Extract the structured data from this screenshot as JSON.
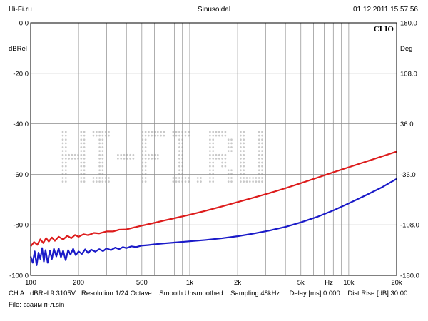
{
  "header": {
    "left": "Hi-Fi.ru",
    "center": "Sinusoidal",
    "right": "01.12.2011 15.57.56"
  },
  "brand_label": "CLIO",
  "watermark": "HI-FI.RU",
  "footer": {
    "line1": [
      "CH A",
      "dBRel 9.3105V",
      "Resolution 1/24 Octave",
      "Smooth Unsmoothed",
      "Sampling 48kHz",
      "Delay [ms] 0.000",
      "Dist Rise [dB] 30.00"
    ],
    "line2": "File: взаим п-л.sin"
  },
  "colors": {
    "red_series": "#dd1c1c",
    "blue_series": "#1a1ac8",
    "grid": "#8c8c8c",
    "watermark": "#c9c9c9"
  },
  "chart_data": {
    "type": "line",
    "x_scale": "log",
    "xlim": [
      100,
      20000
    ],
    "ylim": [
      -100,
      0
    ],
    "y2lim": [
      -180,
      180
    ],
    "ylabel": "dBRel",
    "y2label": "Deg",
    "x_tick_labels": [
      {
        "x": 100,
        "label": "100"
      },
      {
        "x": 200,
        "label": "200"
      },
      {
        "x": 500,
        "label": "500"
      },
      {
        "x": 1000,
        "label": "1k"
      },
      {
        "x": 2000,
        "label": "2k"
      },
      {
        "x": 5000,
        "label": "5k"
      },
      {
        "x": 7500,
        "label": "Hz"
      },
      {
        "x": 10000,
        "label": "10k"
      },
      {
        "x": 20000,
        "label": "20k"
      }
    ],
    "y_ticks": [
      {
        "v": 0,
        "label": "0.0"
      },
      {
        "v": -20,
        "label": "-20.0"
      },
      {
        "v": -40,
        "label": "-40.0"
      },
      {
        "v": -60,
        "label": "-60.0"
      },
      {
        "v": -80,
        "label": "-80.0"
      },
      {
        "v": -100,
        "label": "-100.0"
      }
    ],
    "y2_ticks": [
      {
        "v": 180,
        "label": "180.0"
      },
      {
        "v": 108,
        "label": "108.0"
      },
      {
        "v": 36,
        "label": "36.0"
      },
      {
        "v": -36,
        "label": "-36.0"
      },
      {
        "v": -108,
        "label": "-108.0"
      },
      {
        "v": -180,
        "label": "-180.0"
      }
    ],
    "grid": true,
    "series": [
      {
        "color": "#dd1c1c",
        "points": [
          [
            100,
            -88.5
          ],
          [
            105,
            -86.8
          ],
          [
            110,
            -87.9
          ],
          [
            115,
            -85.7
          ],
          [
            120,
            -87.2
          ],
          [
            125,
            -85.2
          ],
          [
            130,
            -86.6
          ],
          [
            136,
            -85.0
          ],
          [
            142,
            -86.3
          ],
          [
            150,
            -84.7
          ],
          [
            160,
            -85.8
          ],
          [
            170,
            -84.3
          ],
          [
            180,
            -85.3
          ],
          [
            190,
            -84.0
          ],
          [
            200,
            -84.7
          ],
          [
            215,
            -83.7
          ],
          [
            230,
            -84.1
          ],
          [
            250,
            -83.2
          ],
          [
            270,
            -83.4
          ],
          [
            300,
            -82.6
          ],
          [
            330,
            -82.6
          ],
          [
            360,
            -81.9
          ],
          [
            400,
            -81.8
          ],
          [
            450,
            -81.0
          ],
          [
            500,
            -80.3
          ],
          [
            600,
            -79.2
          ],
          [
            700,
            -78.2
          ],
          [
            800,
            -77.4
          ],
          [
            1000,
            -76.0
          ],
          [
            1250,
            -74.5
          ],
          [
            1600,
            -72.7
          ],
          [
            2000,
            -71.0
          ],
          [
            2500,
            -69.3
          ],
          [
            3150,
            -67.5
          ],
          [
            4000,
            -65.5
          ],
          [
            5000,
            -63.5
          ],
          [
            6300,
            -61.4
          ],
          [
            8000,
            -59.2
          ],
          [
            10000,
            -57.2
          ],
          [
            12500,
            -55.2
          ],
          [
            16000,
            -53.0
          ],
          [
            20000,
            -51.0
          ]
        ]
      },
      {
        "color": "#1a1ac8",
        "points": [
          [
            100,
            -92.5
          ],
          [
            103,
            -95.0
          ],
          [
            106,
            -90.5
          ],
          [
            109,
            -96.0
          ],
          [
            112,
            -91.0
          ],
          [
            115,
            -93.5
          ],
          [
            118,
            -89.2
          ],
          [
            121,
            -94.5
          ],
          [
            124,
            -90.0
          ],
          [
            128,
            -95.0
          ],
          [
            132,
            -90.2
          ],
          [
            136,
            -93.5
          ],
          [
            140,
            -89.5
          ],
          [
            145,
            -92.5
          ],
          [
            150,
            -89.3
          ],
          [
            155,
            -92.8
          ],
          [
            160,
            -90.2
          ],
          [
            166,
            -94.0
          ],
          [
            172,
            -90.0
          ],
          [
            178,
            -91.8
          ],
          [
            185,
            -89.5
          ],
          [
            192,
            -92.0
          ],
          [
            200,
            -90.5
          ],
          [
            210,
            -91.5
          ],
          [
            220,
            -89.7
          ],
          [
            230,
            -91.2
          ],
          [
            240,
            -89.8
          ],
          [
            255,
            -90.6
          ],
          [
            270,
            -89.6
          ],
          [
            285,
            -90.4
          ],
          [
            300,
            -89.3
          ],
          [
            320,
            -90.0
          ],
          [
            340,
            -89.0
          ],
          [
            360,
            -89.6
          ],
          [
            380,
            -88.8
          ],
          [
            400,
            -89.2
          ],
          [
            430,
            -88.5
          ],
          [
            460,
            -88.8
          ],
          [
            500,
            -88.2
          ],
          [
            550,
            -88.0
          ],
          [
            600,
            -87.7
          ],
          [
            700,
            -87.3
          ],
          [
            800,
            -87.0
          ],
          [
            1000,
            -86.5
          ],
          [
            1250,
            -86.0
          ],
          [
            1600,
            -85.3
          ],
          [
            2000,
            -84.5
          ],
          [
            2500,
            -83.5
          ],
          [
            3150,
            -82.3
          ],
          [
            4000,
            -80.8
          ],
          [
            5000,
            -79.0
          ],
          [
            6300,
            -76.9
          ],
          [
            8000,
            -74.3
          ],
          [
            10000,
            -71.5
          ],
          [
            12500,
            -68.6
          ],
          [
            16000,
            -65.3
          ],
          [
            20000,
            -61.8
          ]
        ]
      }
    ]
  }
}
